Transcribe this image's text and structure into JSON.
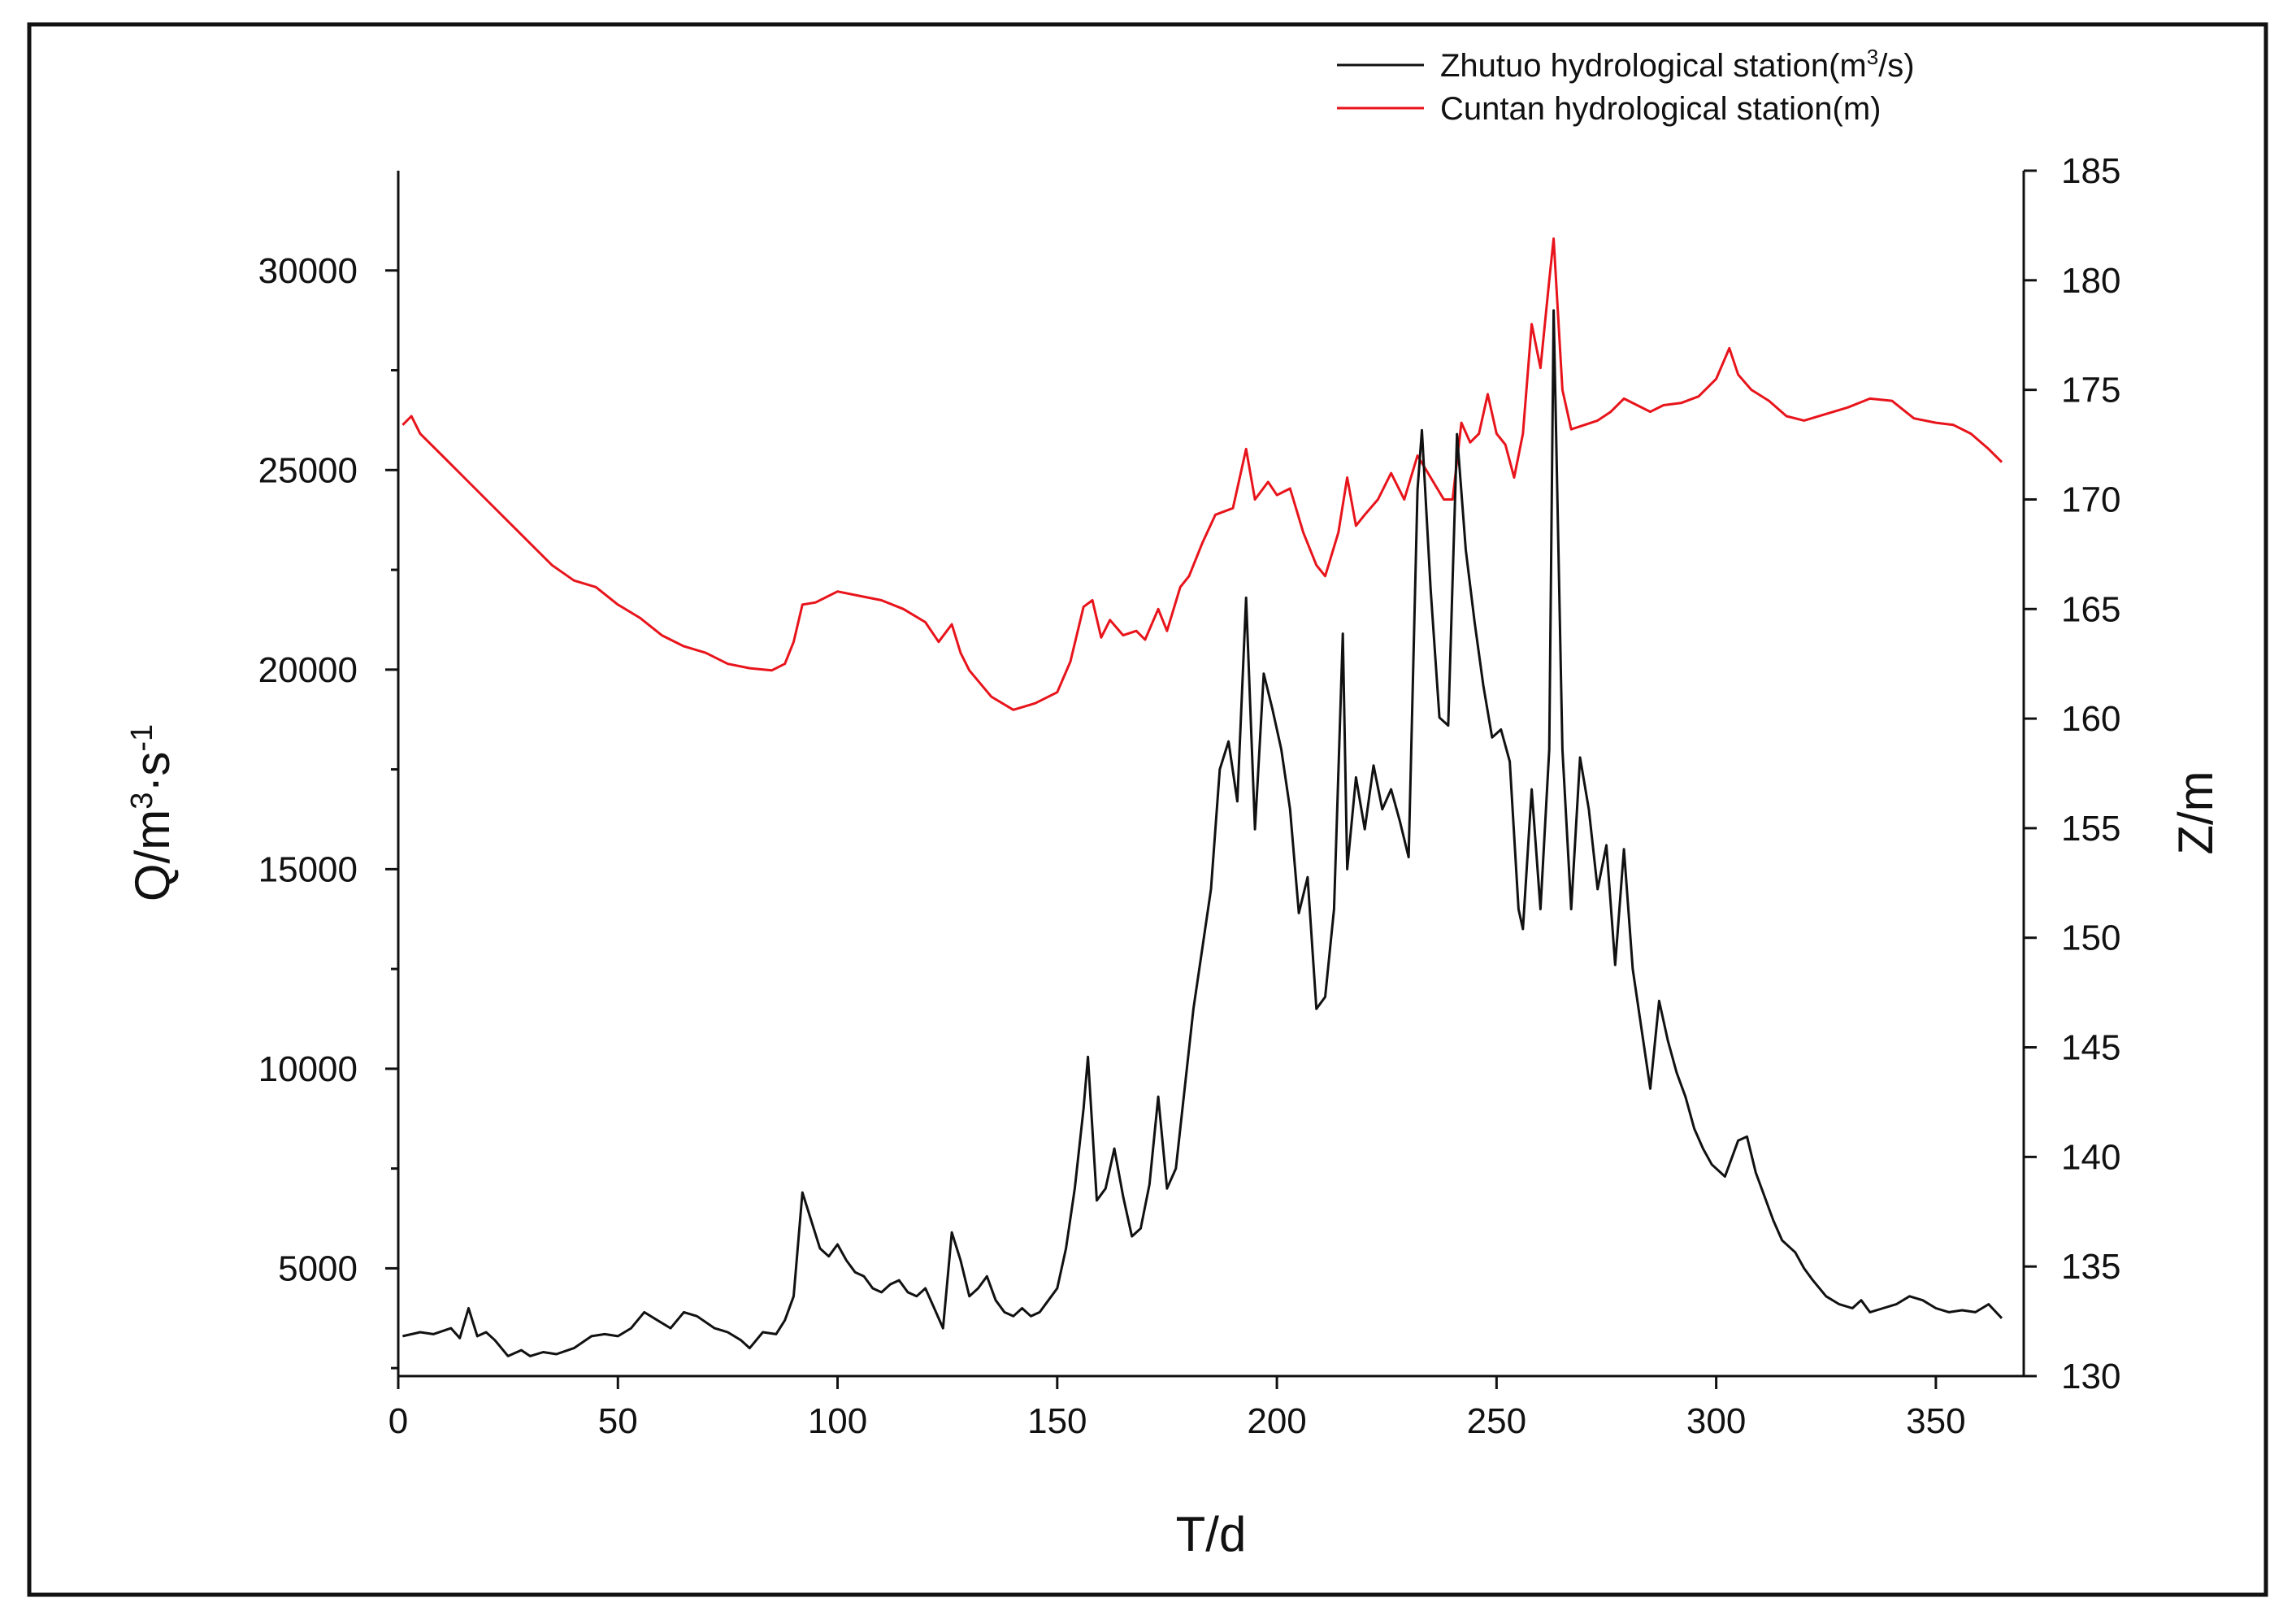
{
  "chart_data": {
    "type": "line",
    "title": "",
    "xlabel": "T/d",
    "ylabel_left": {
      "base": "Q/m",
      "sup1": "3",
      "mid": "·s",
      "sup2": "-1"
    },
    "ylabel_right": "Z/m",
    "xlim": [
      0,
      370
    ],
    "ylim_left": [
      2300,
      32500
    ],
    "ylim_right": [
      130,
      185
    ],
    "x_ticks": [
      0,
      50,
      100,
      150,
      200,
      250,
      300,
      350
    ],
    "y_left_ticks": [
      5000,
      10000,
      15000,
      20000,
      25000,
      30000
    ],
    "y_right_ticks": [
      130,
      135,
      140,
      145,
      150,
      155,
      160,
      165,
      170,
      175,
      180,
      185
    ],
    "legend_position": "top-right",
    "series": [
      {
        "name": "Zhutuo hydrological station",
        "legend": {
          "base": "Zhutuo hydrological station(m",
          "sup": "3",
          "tail": "/s)"
        },
        "axis": "left",
        "color": "#111111",
        "points": [
          [
            1,
            3300
          ],
          [
            5,
            3400
          ],
          [
            8,
            3350
          ],
          [
            12,
            3500
          ],
          [
            14,
            3250
          ],
          [
            16,
            4000
          ],
          [
            18,
            3300
          ],
          [
            20,
            3400
          ],
          [
            22,
            3200
          ],
          [
            25,
            2800
          ],
          [
            28,
            2950
          ],
          [
            30,
            2800
          ],
          [
            33,
            2900
          ],
          [
            36,
            2850
          ],
          [
            40,
            3000
          ],
          [
            44,
            3300
          ],
          [
            47,
            3350
          ],
          [
            50,
            3300
          ],
          [
            53,
            3500
          ],
          [
            56,
            3900
          ],
          [
            59,
            3700
          ],
          [
            62,
            3500
          ],
          [
            65,
            3900
          ],
          [
            68,
            3800
          ],
          [
            72,
            3500
          ],
          [
            75,
            3400
          ],
          [
            78,
            3200
          ],
          [
            80,
            3000
          ],
          [
            83,
            3400
          ],
          [
            86,
            3350
          ],
          [
            88,
            3700
          ],
          [
            90,
            4300
          ],
          [
            92,
            6900
          ],
          [
            94,
            6200
          ],
          [
            96,
            5500
          ],
          [
            98,
            5300
          ],
          [
            100,
            5600
          ],
          [
            102,
            5200
          ],
          [
            104,
            4900
          ],
          [
            106,
            4800
          ],
          [
            108,
            4500
          ],
          [
            110,
            4400
          ],
          [
            112,
            4600
          ],
          [
            114,
            4700
          ],
          [
            116,
            4400
          ],
          [
            118,
            4300
          ],
          [
            120,
            4500
          ],
          [
            122,
            4000
          ],
          [
            124,
            3500
          ],
          [
            126,
            5900
          ],
          [
            128,
            5200
          ],
          [
            130,
            4300
          ],
          [
            132,
            4500
          ],
          [
            134,
            4800
          ],
          [
            136,
            4200
          ],
          [
            138,
            3900
          ],
          [
            140,
            3800
          ],
          [
            142,
            4000
          ],
          [
            144,
            3800
          ],
          [
            146,
            3900
          ],
          [
            148,
            4200
          ],
          [
            150,
            4500
          ],
          [
            152,
            5500
          ],
          [
            154,
            7000
          ],
          [
            156,
            9000
          ],
          [
            157,
            10300
          ],
          [
            159,
            6700
          ],
          [
            161,
            7000
          ],
          [
            163,
            8000
          ],
          [
            165,
            6800
          ],
          [
            167,
            5800
          ],
          [
            169,
            6000
          ],
          [
            171,
            7100
          ],
          [
            173,
            9300
          ],
          [
            175,
            7000
          ],
          [
            177,
            7500
          ],
          [
            179,
            9500
          ],
          [
            181,
            11500
          ],
          [
            183,
            13000
          ],
          [
            185,
            14500
          ],
          [
            187,
            17500
          ],
          [
            189,
            18200
          ],
          [
            191,
            16700
          ],
          [
            193,
            21800
          ],
          [
            195,
            16000
          ],
          [
            197,
            19900
          ],
          [
            199,
            19000
          ],
          [
            201,
            18000
          ],
          [
            203,
            16500
          ],
          [
            205,
            13900
          ],
          [
            207,
            14800
          ],
          [
            209,
            11500
          ],
          [
            211,
            11800
          ],
          [
            213,
            14000
          ],
          [
            215,
            20900
          ],
          [
            216,
            15000
          ],
          [
            218,
            17300
          ],
          [
            220,
            16000
          ],
          [
            222,
            17600
          ],
          [
            224,
            16500
          ],
          [
            226,
            17000
          ],
          [
            228,
            16200
          ],
          [
            230,
            15300
          ],
          [
            232,
            24500
          ],
          [
            233,
            26000
          ],
          [
            235,
            22000
          ],
          [
            237,
            18800
          ],
          [
            239,
            18600
          ],
          [
            241,
            25900
          ],
          [
            243,
            23000
          ],
          [
            245,
            21200
          ],
          [
            247,
            19600
          ],
          [
            249,
            18300
          ],
          [
            251,
            18500
          ],
          [
            253,
            17700
          ],
          [
            255,
            14000
          ],
          [
            256,
            13500
          ],
          [
            258,
            17000
          ],
          [
            260,
            14000
          ],
          [
            262,
            18000
          ],
          [
            263,
            29000
          ],
          [
            265,
            18000
          ],
          [
            267,
            14000
          ],
          [
            269,
            17800
          ],
          [
            271,
            16500
          ],
          [
            273,
            14500
          ],
          [
            275,
            15600
          ],
          [
            277,
            12600
          ],
          [
            279,
            15500
          ],
          [
            281,
            12500
          ],
          [
            283,
            11000
          ],
          [
            285,
            9500
          ],
          [
            287,
            11700
          ],
          [
            289,
            10700
          ],
          [
            291,
            9900
          ],
          [
            293,
            9300
          ],
          [
            295,
            8500
          ],
          [
            297,
            8000
          ],
          [
            299,
            7600
          ],
          [
            302,
            7300
          ],
          [
            305,
            8200
          ],
          [
            307,
            8300
          ],
          [
            309,
            7400
          ],
          [
            311,
            6800
          ],
          [
            313,
            6200
          ],
          [
            315,
            5700
          ],
          [
            318,
            5400
          ],
          [
            320,
            5000
          ],
          [
            322,
            4700
          ],
          [
            325,
            4300
          ],
          [
            328,
            4100
          ],
          [
            331,
            4000
          ],
          [
            333,
            4200
          ],
          [
            335,
            3900
          ],
          [
            338,
            4000
          ],
          [
            341,
            4100
          ],
          [
            344,
            4300
          ],
          [
            347,
            4200
          ],
          [
            350,
            4000
          ],
          [
            353,
            3900
          ],
          [
            356,
            3950
          ],
          [
            359,
            3900
          ],
          [
            362,
            4100
          ],
          [
            365,
            3750
          ]
        ]
      },
      {
        "name": "Cuntan hydrological station",
        "legend": {
          "text": "Cuntan hydrological station(m)"
        },
        "axis": "right",
        "color": "#e8141b",
        "points": [
          [
            1,
            173.4
          ],
          [
            3,
            173.8
          ],
          [
            5,
            173.0
          ],
          [
            10,
            172.0
          ],
          [
            15,
            171.0
          ],
          [
            20,
            170.0
          ],
          [
            25,
            169.0
          ],
          [
            30,
            168.0
          ],
          [
            35,
            167.0
          ],
          [
            40,
            166.3
          ],
          [
            45,
            166.0
          ],
          [
            50,
            165.2
          ],
          [
            55,
            164.6
          ],
          [
            60,
            163.8
          ],
          [
            65,
            163.3
          ],
          [
            70,
            163.0
          ],
          [
            75,
            162.5
          ],
          [
            80,
            162.3
          ],
          [
            85,
            162.2
          ],
          [
            88,
            162.5
          ],
          [
            90,
            163.5
          ],
          [
            92,
            165.2
          ],
          [
            95,
            165.3
          ],
          [
            100,
            165.8
          ],
          [
            105,
            165.6
          ],
          [
            110,
            165.4
          ],
          [
            115,
            165.0
          ],
          [
            120,
            164.4
          ],
          [
            123,
            163.5
          ],
          [
            126,
            164.3
          ],
          [
            128,
            163.0
          ],
          [
            130,
            162.2
          ],
          [
            135,
            161.0
          ],
          [
            140,
            160.4
          ],
          [
            145,
            160.7
          ],
          [
            150,
            161.2
          ],
          [
            153,
            162.6
          ],
          [
            156,
            165.1
          ],
          [
            158,
            165.4
          ],
          [
            160,
            163.7
          ],
          [
            162,
            164.5
          ],
          [
            165,
            163.8
          ],
          [
            168,
            164.0
          ],
          [
            170,
            163.6
          ],
          [
            173,
            165.0
          ],
          [
            175,
            164.0
          ],
          [
            178,
            166.0
          ],
          [
            180,
            166.5
          ],
          [
            183,
            168.0
          ],
          [
            186,
            169.3
          ],
          [
            190,
            169.6
          ],
          [
            193,
            172.3
          ],
          [
            195,
            170.0
          ],
          [
            198,
            170.8
          ],
          [
            200,
            170.2
          ],
          [
            203,
            170.5
          ],
          [
            206,
            168.5
          ],
          [
            209,
            167.0
          ],
          [
            211,
            166.5
          ],
          [
            214,
            168.5
          ],
          [
            216,
            171.0
          ],
          [
            218,
            168.8
          ],
          [
            220,
            169.3
          ],
          [
            223,
            170.0
          ],
          [
            226,
            171.2
          ],
          [
            229,
            170.0
          ],
          [
            232,
            172.0
          ],
          [
            235,
            171.0
          ],
          [
            238,
            170.0
          ],
          [
            240,
            170.0
          ],
          [
            242,
            173.5
          ],
          [
            244,
            172.6
          ],
          [
            246,
            173.0
          ],
          [
            248,
            174.8
          ],
          [
            250,
            173.0
          ],
          [
            252,
            172.5
          ],
          [
            254,
            171.0
          ],
          [
            256,
            173.0
          ],
          [
            258,
            178.0
          ],
          [
            260,
            176.0
          ],
          [
            262,
            180.0
          ],
          [
            263,
            181.9
          ],
          [
            265,
            175.0
          ],
          [
            267,
            173.2
          ],
          [
            270,
            173.4
          ],
          [
            273,
            173.6
          ],
          [
            276,
            174.0
          ],
          [
            279,
            174.6
          ],
          [
            282,
            174.3
          ],
          [
            285,
            174.0
          ],
          [
            288,
            174.3
          ],
          [
            292,
            174.4
          ],
          [
            296,
            174.7
          ],
          [
            300,
            175.5
          ],
          [
            303,
            176.9
          ],
          [
            305,
            175.7
          ],
          [
            308,
            175.0
          ],
          [
            312,
            174.5
          ],
          [
            316,
            173.8
          ],
          [
            320,
            173.6
          ],
          [
            325,
            173.9
          ],
          [
            330,
            174.2
          ],
          [
            335,
            174.6
          ],
          [
            340,
            174.5
          ],
          [
            345,
            173.7
          ],
          [
            350,
            173.5
          ],
          [
            354,
            173.4
          ],
          [
            358,
            173.0
          ],
          [
            362,
            172.3
          ],
          [
            365,
            171.7
          ]
        ]
      }
    ]
  }
}
